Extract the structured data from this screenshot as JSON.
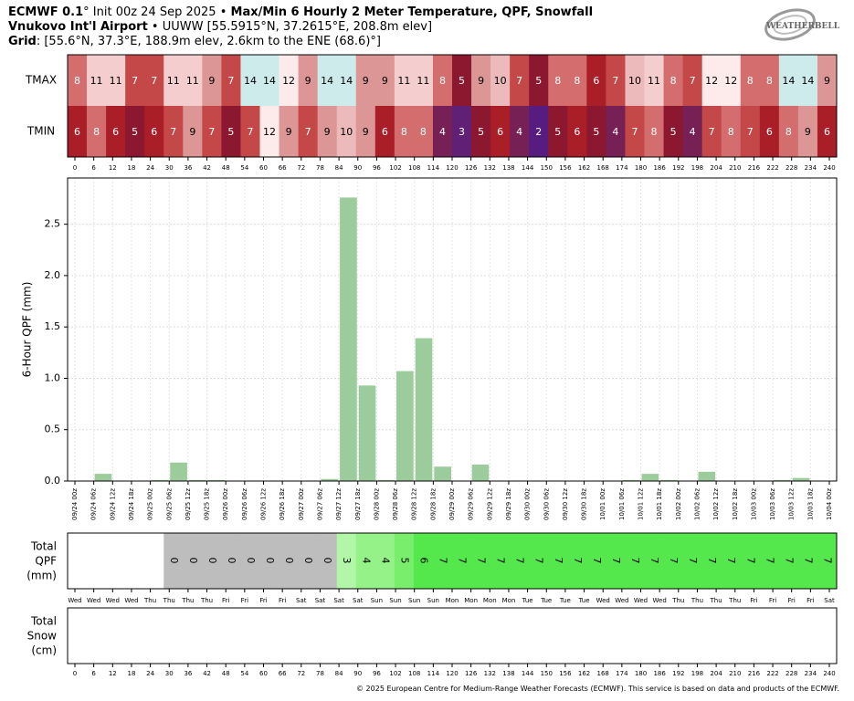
{
  "header": {
    "model": "ECMWF 0.1",
    "init": "° Init 00z 24 Sep 2025",
    "sep": " • ",
    "title": "Max/Min 6 Hourly 2 Meter Temperature,  QPF,  Snowfall",
    "station_name": "Vnukovo Int'l Airport",
    "station_info": "UUWW [55.5915°N, 37.2615°E, 208.8m elev]",
    "grid_label": "Grid",
    "grid_info": ": [55.6°N, 37.3°E, 188.9m elev, 2.6km to the ENE (68.6)°]"
  },
  "logo": {
    "text": "WEATHERBELL",
    "icon": "weatherbell-swirl-logo"
  },
  "copyright": "© 2025 European Centre for Medium-Range Weather Forecasts (ECMWF). This service is based on data and products of the ECMWF.",
  "chart_data": [
    {
      "type": "heatmap",
      "name": "temperature",
      "rows": [
        "TMAX",
        "TMIN"
      ],
      "tmax": [
        8,
        11,
        11,
        7,
        7,
        11,
        11,
        9,
        7,
        14,
        14,
        12,
        9,
        14,
        14,
        9,
        9,
        11,
        11,
        8,
        5,
        9,
        10,
        7,
        5,
        8,
        8,
        6,
        7,
        10,
        11,
        8,
        7,
        12,
        12,
        8,
        8,
        14,
        14,
        9
      ],
      "tmin": [
        6,
        8,
        6,
        5,
        6,
        7,
        9,
        7,
        5,
        7,
        12,
        9,
        7,
        9,
        10,
        9,
        6,
        8,
        8,
        4,
        3,
        5,
        6,
        4,
        2,
        5,
        6,
        5,
        4,
        7,
        8,
        5,
        4,
        7,
        8,
        7,
        6,
        8,
        9,
        6
      ],
      "x_ticks": [
        0,
        6,
        12,
        18,
        24,
        30,
        36,
        42,
        48,
        54,
        60,
        66,
        72,
        78,
        84,
        90,
        96,
        102,
        108,
        114,
        120,
        126,
        132,
        138,
        144,
        150,
        156,
        162,
        168,
        174,
        180,
        186,
        192,
        198,
        204,
        210,
        216,
        222,
        228,
        234,
        240
      ]
    },
    {
      "type": "bar",
      "name": "qpf",
      "ylabel": "6-Hour QPF (mm)",
      "ylim": [
        0,
        2.95
      ],
      "yticks": [
        "0.0",
        "0.5",
        "1.0",
        "1.5",
        "2.0",
        "2.5"
      ],
      "bar_color": "#9ccc9c",
      "categories": [
        "09/24 00z",
        "09/24 06z",
        "09/24 12z",
        "09/24 18z",
        "09/25 00z",
        "09/25 06z",
        "09/25 12z",
        "09/25 18z",
        "09/26 00z",
        "09/26 06z",
        "09/26 12z",
        "09/26 18z",
        "09/27 00z",
        "09/27 06z",
        "09/27 12z",
        "09/27 18z",
        "09/28 00z",
        "09/28 06z",
        "09/28 12z",
        "09/28 18z",
        "09/29 00z",
        "09/29 06z",
        "09/29 12z",
        "09/29 18z",
        "09/30 00z",
        "09/30 06z",
        "09/30 12z",
        "09/30 18z",
        "10/01 00z",
        "10/01 06z",
        "10/01 12z",
        "10/01 18z",
        "10/02 00z",
        "10/02 06z",
        "10/02 12z",
        "10/02 18z",
        "10/03 00z",
        "10/03 06z",
        "10/03 12z",
        "10/03 18z",
        "10/04 00z"
      ],
      "values": [
        0,
        0.07,
        0,
        0,
        0.01,
        0.18,
        0.01,
        0.01,
        0,
        0,
        0,
        0,
        0,
        0.02,
        2.76,
        0.93,
        0.01,
        1.07,
        1.39,
        0.14,
        0,
        0.16,
        0,
        0,
        0,
        0,
        0,
        0,
        0,
        0.01,
        0.07,
        0.01,
        0,
        0.09,
        0,
        0,
        0,
        0.01,
        0.03,
        0,
        0
      ]
    },
    {
      "type": "table",
      "name": "total-qpf",
      "label": "Total\nQPF\n(mm)",
      "values": [
        "",
        "",
        "",
        "",
        "",
        "0",
        "0",
        "0",
        "0",
        "0",
        "0",
        "0",
        "0",
        "0",
        "3",
        "4",
        "4",
        "5",
        "6",
        "7",
        "7",
        "7",
        "7",
        "7",
        "7",
        "7",
        "7",
        "7",
        "7",
        "7",
        "7",
        "7",
        "7",
        "7",
        "7",
        "7",
        "7",
        "7",
        "7",
        "7"
      ],
      "days": [
        "Wed",
        "Wed",
        "Wed",
        "Wed",
        "Thu",
        "Thu",
        "Thu",
        "Thu",
        "Fri",
        "Fri",
        "Fri",
        "Fri",
        "Sat",
        "Sat",
        "Sat",
        "Sat",
        "Sun",
        "Sun",
        "Sun",
        "Sun",
        "Mon",
        "Mon",
        "Mon",
        "Mon",
        "Tue",
        "Tue",
        "Tue",
        "Tue",
        "Wed",
        "Wed",
        "Wed",
        "Wed",
        "Thu",
        "Thu",
        "Thu",
        "Thu",
        "Fri",
        "Fri",
        "Fri",
        "Fri",
        "Sat"
      ]
    },
    {
      "type": "table",
      "name": "total-snow",
      "label": "Total\nSnow\n(cm)",
      "values": [],
      "x_ticks": [
        0,
        6,
        12,
        18,
        24,
        30,
        36,
        42,
        48,
        54,
        60,
        66,
        72,
        78,
        84,
        90,
        96,
        102,
        108,
        114,
        120,
        126,
        132,
        138,
        144,
        150,
        156,
        162,
        168,
        174,
        180,
        186,
        192,
        198,
        204,
        210,
        216,
        222,
        228,
        234,
        240
      ]
    }
  ]
}
